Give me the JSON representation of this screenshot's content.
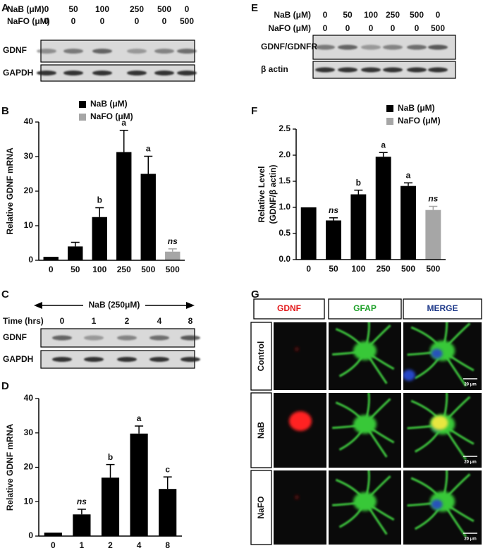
{
  "panels": {
    "letters": [
      "A",
      "B",
      "C",
      "D",
      "E",
      "F",
      "G"
    ]
  },
  "blot_A": {
    "row_labels": [
      "NaB (μM)",
      "NaFO (μM)"
    ],
    "nab": [
      "0",
      "50",
      "100",
      "250",
      "500",
      "0"
    ],
    "nafo": [
      "0",
      "0",
      "0",
      "0",
      "0",
      "500"
    ],
    "bands": [
      "GDNF",
      "GAPDH"
    ]
  },
  "blot_C": {
    "treatment": "NaB (250μM)",
    "time_label": "Time (hrs)",
    "times": [
      "0",
      "1",
      "2",
      "4",
      "8"
    ],
    "bands": [
      "GDNF",
      "GAPDH"
    ]
  },
  "blot_E": {
    "row_labels": [
      "NaB (μM)",
      "NaFO (μM)"
    ],
    "nab": [
      "0",
      "50",
      "100",
      "250",
      "500",
      "0"
    ],
    "nafo": [
      "0",
      "0",
      "0",
      "0",
      "0",
      "500"
    ],
    "bands": [
      "GDNF/GDNFR",
      "β actin"
    ]
  },
  "images_G": {
    "columns": [
      "GDNF",
      "GFAP",
      "MERGE"
    ],
    "rows": [
      "Control",
      "NaB",
      "NaFO"
    ],
    "scale_bars": [
      "20 μm",
      "20 μm",
      "20 μm"
    ]
  },
  "chart_data": [
    {
      "type": "bar",
      "ylabel": [
        "Relative GDNF mRNA"
      ],
      "categories": [
        "0",
        "50",
        "100",
        "250",
        "500",
        "500"
      ],
      "series": [
        {
          "name": "NaB (μM)",
          "color": "#000000",
          "values": [
            1,
            4,
            12.5,
            31.3,
            25,
            null
          ],
          "errors": [
            null,
            1.2,
            2.7,
            6.3,
            5.1,
            null
          ],
          "annotations": [
            null,
            null,
            "b",
            "a",
            "a",
            null
          ]
        },
        {
          "name": "NaFO (μM)",
          "color": "#a6a6a6",
          "values": [
            null,
            null,
            null,
            null,
            null,
            2.5
          ],
          "errors": [
            null,
            null,
            null,
            null,
            null,
            0.8
          ],
          "annotations": [
            null,
            null,
            null,
            null,
            null,
            "ns"
          ]
        }
      ],
      "ylim": [
        0,
        40
      ],
      "yticks": [
        0,
        10,
        20,
        30,
        40
      ],
      "grid": false
    },
    {
      "type": "bar",
      "ylabel": [
        "Relative GDNF mRNA"
      ],
      "xlabel": "Time (hrs)",
      "categories": [
        "0",
        "1",
        "2",
        "4",
        "8"
      ],
      "series": [
        {
          "color": "#000000",
          "values": [
            1,
            6.3,
            17,
            29.8,
            13.7
          ],
          "errors": [
            null,
            1.5,
            3.8,
            2.2,
            3.5
          ],
          "annotations": [
            null,
            "ns",
            "b",
            "a",
            "c"
          ]
        }
      ],
      "ylim": [
        0,
        40
      ],
      "yticks": [
        0,
        10,
        20,
        30,
        40
      ],
      "grid": false
    },
    {
      "type": "bar",
      "ylabel": [
        "Relative Level",
        "(GDNF/β actin)"
      ],
      "categories": [
        "0",
        "50",
        "100",
        "250",
        "500",
        "500"
      ],
      "series": [
        {
          "name": "NaB (μM)",
          "color": "#000000",
          "values": [
            1.0,
            0.75,
            1.25,
            1.97,
            1.41,
            null
          ],
          "errors": [
            null,
            0.05,
            0.08,
            0.08,
            0.06,
            null
          ],
          "annotations": [
            null,
            "ns",
            "b",
            "a",
            "a",
            null
          ]
        },
        {
          "name": "NaFO (μM)",
          "color": "#a6a6a6",
          "values": [
            null,
            null,
            null,
            null,
            null,
            0.95
          ],
          "errors": [
            null,
            null,
            null,
            null,
            null,
            0.07
          ],
          "annotations": [
            null,
            null,
            null,
            null,
            null,
            "ns"
          ]
        }
      ],
      "ylim": [
        0,
        2.5
      ],
      "yticks": [
        {
          "value": 0,
          "label": "0.0"
        },
        0.5,
        {
          "value": 1,
          "label": "1.0"
        },
        1.5,
        {
          "value": 2,
          "label": "2.0"
        },
        2.5
      ],
      "grid": false
    }
  ]
}
